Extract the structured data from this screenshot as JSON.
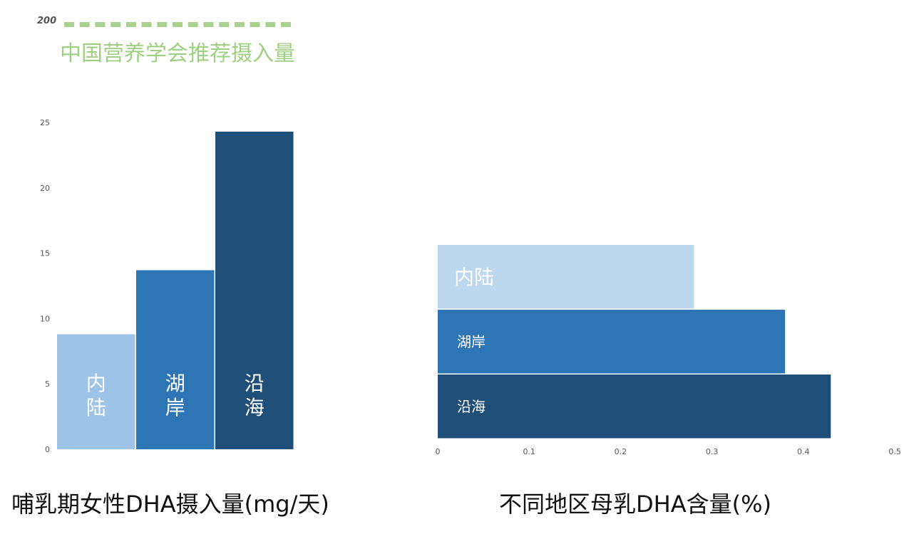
{
  "reference": {
    "value_label": "200",
    "label": "中国营养学会推荐摄入量",
    "color": "#a9d18e"
  },
  "chart_data": [
    {
      "type": "bar",
      "title": "哺乳期女性DHA摄入量(mg/天)",
      "categories": [
        "内陆",
        "湖岸",
        "沿海"
      ],
      "values": [
        8.8,
        13.7,
        24.3
      ],
      "ylim": [
        0,
        25
      ],
      "yticks": [
        "0",
        "5",
        "10",
        "15",
        "20",
        "25"
      ],
      "colors": [
        "#9dc3e6",
        "#2e75b6",
        "#1f4e79"
      ],
      "grid": false,
      "legend": "none"
    },
    {
      "type": "bar",
      "orientation": "horizontal",
      "title": "不同地区母乳DHA含量(%)",
      "categories": [
        "内陆",
        "湖岸",
        "沿海"
      ],
      "values": [
        0.28,
        0.38,
        0.43
      ],
      "xlim": [
        0,
        0.5
      ],
      "xticks": [
        "0",
        "0.1",
        "0.2",
        "0.3",
        "0.4",
        "0.5"
      ],
      "colors": [
        "#bdd7ee",
        "#2e75b6",
        "#1f4e79"
      ],
      "grid": false,
      "legend": "none"
    }
  ]
}
